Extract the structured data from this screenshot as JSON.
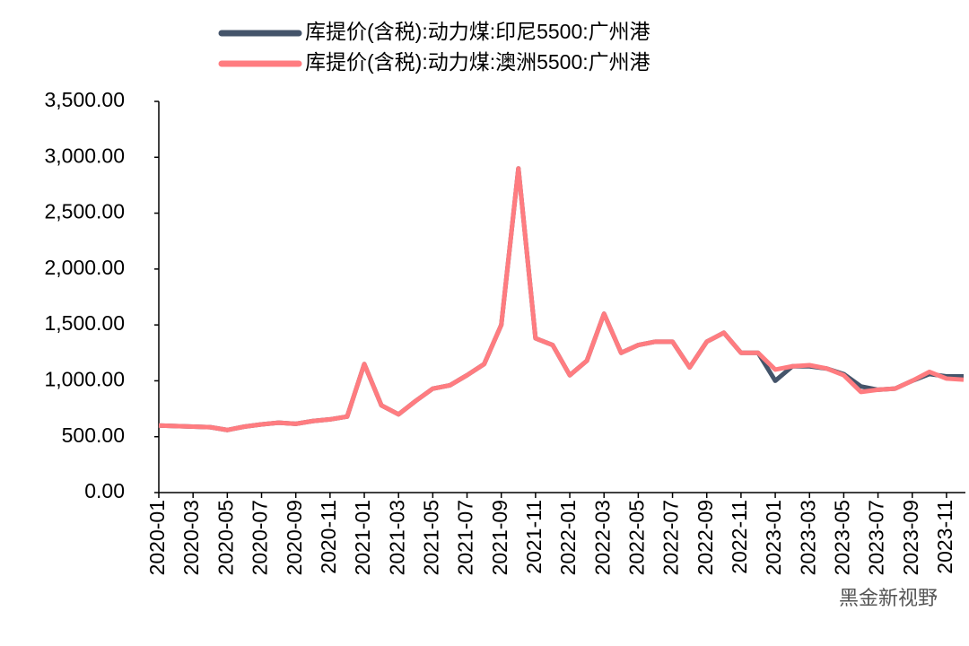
{
  "chart_data": {
    "type": "line",
    "categories": [
      "2020-01",
      null,
      "2020-03",
      null,
      "2020-05",
      null,
      "2020-07",
      null,
      "2020-09",
      null,
      "2020-11",
      null,
      "2021-01",
      null,
      "2021-03",
      null,
      "2021-05",
      null,
      "2021-07",
      null,
      "2021-09",
      null,
      "2021-11",
      null,
      "2022-01",
      null,
      "2022-03",
      null,
      "2022-05",
      null,
      "2022-07",
      null,
      "2022-09",
      null,
      "2022-11",
      null,
      "2023-01",
      null,
      "2023-03",
      null,
      "2023-05",
      null,
      "2023-07",
      null,
      "2023-09",
      null,
      "2023-11",
      null
    ],
    "series": [
      {
        "name": "库提价(含税):动力煤:印尼5500:广州港",
        "color": "#44546a",
        "values": [
          600,
          595,
          590,
          585,
          560,
          590,
          610,
          625,
          615,
          640,
          655,
          680,
          1150,
          780,
          700,
          820,
          930,
          960,
          1050,
          1150,
          1500,
          2900,
          1380,
          1320,
          1050,
          1180,
          1600,
          1250,
          1320,
          1350,
          1350,
          1120,
          1350,
          1430,
          1250,
          1250,
          1000,
          1130,
          1130,
          1110,
          1060,
          950,
          920,
          930,
          1000,
          1060,
          1040,
          1040
        ]
      },
      {
        "name": "库提价(含税):动力煤:澳洲5500:广州港",
        "color": "#ff7c80",
        "values": [
          600,
          595,
          590,
          585,
          560,
          590,
          610,
          625,
          615,
          640,
          655,
          680,
          1150,
          780,
          700,
          820,
          930,
          960,
          1050,
          1150,
          1500,
          2900,
          1380,
          1320,
          1050,
          1180,
          1600,
          1250,
          1320,
          1350,
          1350,
          1120,
          1350,
          1430,
          1250,
          1250,
          1100,
          1130,
          1140,
          1110,
          1050,
          900,
          920,
          930,
          1000,
          1080,
          1020,
          1010
        ]
      }
    ],
    "ylim": [
      0,
      3500
    ],
    "yticks": [
      {
        "value": 0,
        "label": "0.00"
      },
      {
        "value": 500,
        "label": "500.00"
      },
      {
        "value": 1000,
        "label": "1,000.00"
      },
      {
        "value": 1500,
        "label": "1,500.00"
      },
      {
        "value": 2000,
        "label": "2,000.00"
      },
      {
        "value": 2500,
        "label": "2,500.00"
      },
      {
        "value": 3000,
        "label": "3,000.00"
      },
      {
        "value": 3500,
        "label": "3,500.00"
      }
    ],
    "grid": false,
    "watermark": "黑金新视野"
  }
}
